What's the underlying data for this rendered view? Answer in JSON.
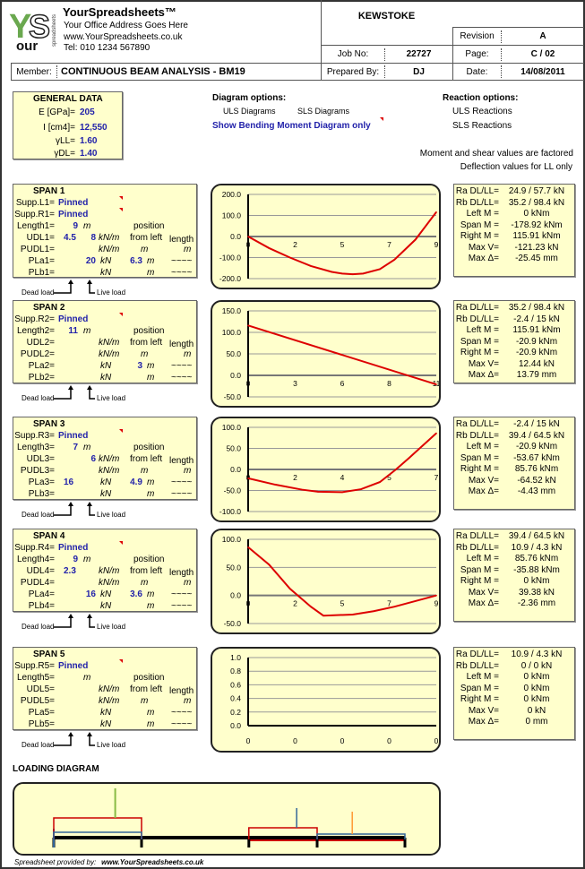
{
  "header": {
    "company": "YourSpreadsheets™",
    "address": "Your Office Address Goes Here",
    "website": "www.YourSpreadsheets.co.uk",
    "tel": "Tel: 010 1234 567890",
    "logo_text": "YS our spreadsheets",
    "project": "KEWSTOKE",
    "revision_label": "Revision",
    "revision": "A",
    "job_label": "Job No:",
    "job_no": "22727",
    "page_label": "Page:",
    "page": "C / 02",
    "member_label": "Member:",
    "member": "CONTINUOUS BEAM ANALYSIS - BM19",
    "prepared_label": "Prepared By:",
    "prepared_by": "DJ",
    "date_label": "Date:",
    "date": "14/08/2011"
  },
  "general": {
    "title": "GENERAL DATA",
    "e_label": "E [GPa]=",
    "e": "205",
    "i_label": "I [cm4]=",
    "i": "12,550",
    "gll_label": "γLL=",
    "gll": "1.60",
    "gdl_label": "γDL=",
    "gdl": "1.40"
  },
  "diagram_options": {
    "title": "Diagram options:",
    "uls": "ULS Diagrams",
    "sls": "SLS Diagrams",
    "selected": "Show Bending Moment Diagram only"
  },
  "reaction_options": {
    "title": "Reaction options:",
    "uls": "ULS Reactions",
    "sls": "SLS Reactions"
  },
  "notes": {
    "factored": "Moment and shear values are factored",
    "deflection": "Deflection values for LL only"
  },
  "labels": {
    "position": "position",
    "from_left": "from left",
    "length": "length",
    "m": "m",
    "kn": "kN",
    "knm": "kN/m",
    "tilde": "~~~~",
    "dead_load": "Dead load",
    "live_load": "Live load",
    "ra": "Ra DL/LL=",
    "rb": "Rb DL/LL=",
    "left_m": "Left M =",
    "span_m": "Span M =",
    "right_m": "Right M =",
    "max_v": "Max V=",
    "max_d": "Max Δ="
  },
  "spans": [
    {
      "title": "SPAN 1",
      "supports": [
        {
          "label": "Supp.L1=",
          "value": "Pinned"
        },
        {
          "label": "Supp.R1=",
          "value": "Pinned"
        }
      ],
      "length_label": "Length1=",
      "length": "9",
      "udl_label": "UDL1=",
      "udl_dl": "4.5",
      "udl_ll": "8",
      "pudl_label": "PUDL1=",
      "pla_label": "PLa1=",
      "pla_dl": "",
      "pla_ll": "20",
      "pla_pos": "6.3",
      "plb_label": "PLb1=",
      "results": {
        "ra": "24.9 / 57.7 kN",
        "rb": "35.2 / 98.4 kN",
        "left_m": "0 kNm",
        "span_m": "-178.92 kNm",
        "right_m": "115.91 kNm",
        "max_v": "-121.23 kN",
        "max_d": "-25.45 mm"
      }
    },
    {
      "title": "SPAN 2",
      "supports": [
        {
          "label": "Supp.R2=",
          "value": "Pinned"
        }
      ],
      "length_label": "Length2=",
      "length": "11",
      "udl_label": "UDL2=",
      "udl_dl": "",
      "udl_ll": "",
      "pudl_label": "PUDL2=",
      "pla_label": "PLa2=",
      "pla_dl": "",
      "pla_ll": "",
      "pla_pos": "3",
      "plb_label": "PLb2=",
      "results": {
        "ra": "35.2 / 98.4 kN",
        "rb": "-2.4 / 15 kN",
        "left_m": "115.91 kNm",
        "span_m": "-20.9 kNm",
        "right_m": "-20.9 kNm",
        "max_v": "12.44 kN",
        "max_d": "13.79 mm"
      }
    },
    {
      "title": "SPAN 3",
      "supports": [
        {
          "label": "Supp.R3=",
          "value": "Pinned"
        }
      ],
      "length_label": "Length3=",
      "length": "7",
      "udl_label": "UDL3=",
      "udl_dl": "",
      "udl_ll": "6",
      "pudl_label": "PUDL3=",
      "pla_label": "PLa3=",
      "pla_dl": "16",
      "pla_ll": "",
      "pla_pos": "4.9",
      "plb_label": "PLb3=",
      "results": {
        "ra": "-2.4 / 15 kN",
        "rb": "39.4 / 64.5 kN",
        "left_m": "-20.9 kNm",
        "span_m": "-53.67 kNm",
        "right_m": "85.76 kNm",
        "max_v": "-64.52 kN",
        "max_d": "-4.43 mm"
      }
    },
    {
      "title": "SPAN 4",
      "supports": [
        {
          "label": "Supp.R4=",
          "value": "Pinned"
        }
      ],
      "length_label": "Length4=",
      "length": "9",
      "udl_label": "UDL4=",
      "udl_dl": "2.3",
      "udl_ll": "",
      "pudl_label": "PUDL4=",
      "pla_label": "PLa4=",
      "pla_dl": "",
      "pla_ll": "16",
      "pla_pos": "3.6",
      "plb_label": "PLb4=",
      "results": {
        "ra": "39.4 / 64.5 kN",
        "rb": "10.9 / 4.3 kN",
        "left_m": "85.76 kNm",
        "span_m": "-35.88 kNm",
        "right_m": "0 kNm",
        "max_v": "39.38 kN",
        "max_d": "-2.36 mm"
      }
    },
    {
      "title": "SPAN 5",
      "supports": [
        {
          "label": "Supp.R5=",
          "value": "Pinned"
        }
      ],
      "length_label": "Length5=",
      "length": "",
      "udl_label": "UDL5=",
      "udl_dl": "",
      "udl_ll": "",
      "pudl_label": "PUDL5=",
      "pla_label": "PLa5=",
      "pla_dl": "",
      "pla_ll": "",
      "pla_pos": "",
      "plb_label": "PLb5=",
      "results": {
        "ra": "10.9 / 4.3 kN",
        "rb": "0 / 0 kN",
        "left_m": "0 kNm",
        "span_m": "0 kNm",
        "right_m": "0 kNm",
        "max_v": "0 kN",
        "max_d": "0 mm"
      }
    }
  ],
  "chart_data": [
    {
      "type": "line",
      "title": "",
      "ylim": [
        -200,
        200
      ],
      "yticks": [
        "200.0",
        "100.0",
        "0.0",
        "-100.0",
        "-200.0"
      ],
      "xticks": [
        "0",
        "2",
        "5",
        "7",
        "9"
      ],
      "xmax": 9,
      "series": [
        {
          "color": "#dd0000",
          "points": [
            [
              0,
              0
            ],
            [
              1,
              -55
            ],
            [
              2,
              -100
            ],
            [
              3,
              -140
            ],
            [
              4,
              -168
            ],
            [
              4.5,
              -176
            ],
            [
              5,
              -179
            ],
            [
              5.5,
              -176
            ],
            [
              6.3,
              -155
            ],
            [
              7,
              -110
            ],
            [
              8,
              -15
            ],
            [
              9,
              116
            ]
          ]
        }
      ]
    },
    {
      "type": "line",
      "title": "",
      "ylim": [
        -50,
        150
      ],
      "yticks": [
        "150.0",
        "100.0",
        "50.0",
        "0.0",
        "-50.0"
      ],
      "xticks": [
        "0",
        "3",
        "6",
        "8",
        "11"
      ],
      "xmax": 11,
      "series": [
        {
          "color": "#dd0000",
          "points": [
            [
              0,
              116
            ],
            [
              11,
              -21
            ]
          ]
        }
      ]
    },
    {
      "type": "line",
      "title": "",
      "ylim": [
        -100,
        100
      ],
      "yticks": [
        "100.0",
        "50.0",
        "0.0",
        "-50.0",
        "-100.0"
      ],
      "xticks": [
        "0",
        "2",
        "4",
        "5",
        "7"
      ],
      "xmax": 7,
      "series": [
        {
          "color": "#dd0000",
          "points": [
            [
              0,
              -21
            ],
            [
              1,
              -36
            ],
            [
              2,
              -48
            ],
            [
              2.6,
              -53
            ],
            [
              3.5,
              -54
            ],
            [
              4.2,
              -47
            ],
            [
              4.9,
              -30
            ],
            [
              5.5,
              0
            ],
            [
              6,
              28
            ],
            [
              7,
              86
            ]
          ]
        }
      ]
    },
    {
      "type": "line",
      "title": "",
      "ylim": [
        -50,
        100
      ],
      "yticks": [
        "100.0",
        "50.0",
        "0.0",
        "-50.0"
      ],
      "xticks": [
        "0",
        "2",
        "5",
        "7",
        "9"
      ],
      "xmax": 9,
      "series": [
        {
          "color": "#dd0000",
          "points": [
            [
              0,
              86
            ],
            [
              1,
              55
            ],
            [
              2,
              12
            ],
            [
              3,
              -20
            ],
            [
              3.6,
              -36
            ],
            [
              5,
              -34
            ],
            [
              6,
              -28
            ],
            [
              7,
              -20
            ],
            [
              8,
              -10
            ],
            [
              9,
              0
            ]
          ]
        }
      ]
    },
    {
      "type": "line",
      "title": "",
      "ylim": [
        0,
        1
      ],
      "yticks": [
        "1.0",
        "0.8",
        "0.6",
        "0.4",
        "0.2",
        "0.0"
      ],
      "xticks": [
        "0",
        "0",
        "0",
        "0",
        "0"
      ],
      "xmax": 1,
      "series": []
    }
  ],
  "loading_diagram": {
    "title": "LOADING DIAGRAM",
    "span_lengths": [
      9,
      11,
      7,
      9
    ],
    "colors": {
      "beam": "#000000",
      "dead": "#336699",
      "live": "#cc0000",
      "point_live": "#88bb44",
      "point_dead": "#336699",
      "point_other": "#ff9933"
    }
  },
  "footer": {
    "prefix": "Spreadsheet provided by:",
    "site": "www.YourSpreadsheets.co.uk"
  }
}
